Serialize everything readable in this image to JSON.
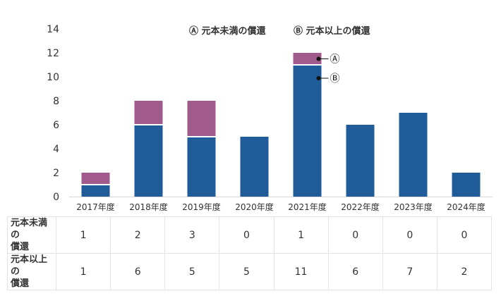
{
  "colors": {
    "repay_before_maturity": "#a05a8c",
    "repay_above_principal": "#1f5c99"
  },
  "chart_data": {
    "type": "bar",
    "stacked": true,
    "categories": [
      "2017年度",
      "2018年度",
      "2019年度",
      "2020年度",
      "2021年度",
      "2022年度",
      "2023年度",
      "2024年度"
    ],
    "series": [
      {
        "name": "元本未満の償還",
        "marker": "Ⓐ",
        "values": [
          1,
          2,
          3,
          0,
          1,
          0,
          0,
          0
        ]
      },
      {
        "name": "元本以上の償還",
        "marker": "Ⓑ",
        "values": [
          1,
          6,
          5,
          5,
          11,
          6,
          7,
          2
        ]
      }
    ],
    "ylim": [
      0,
      14
    ],
    "yticks": [
      0,
      2,
      4,
      6,
      8,
      10,
      12,
      14
    ],
    "legend": "top-center",
    "grid": false,
    "annotations": [
      "Ⓐ",
      "Ⓑ"
    ]
  },
  "table": {
    "rows": [
      {
        "label_line1": "元本未満の",
        "label_line2": "償還",
        "values": [
          "1",
          "2",
          "3",
          "0",
          "1",
          "0",
          "0",
          "0"
        ]
      },
      {
        "label_line1": "元本以上の",
        "label_line2": "償還",
        "values": [
          "1",
          "6",
          "5",
          "5",
          "11",
          "6",
          "7",
          "2"
        ]
      }
    ]
  }
}
